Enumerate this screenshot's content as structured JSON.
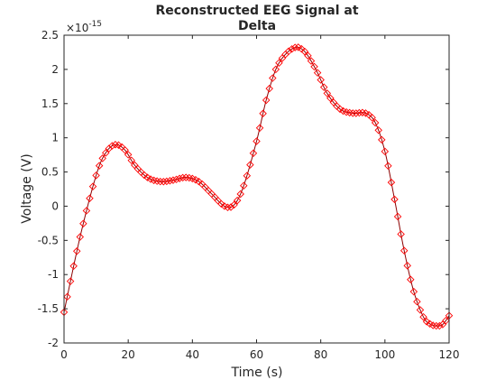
{
  "chart_data": {
    "type": "line",
    "title_lines": [
      "Reconstructed EEG Signal at",
      "Delta"
    ],
    "xlabel": "Time (s)",
    "ylabel": "Voltage (V)",
    "exponent_label": "×10",
    "exponent_power": "-15",
    "xlim": [
      0,
      120
    ],
    "ylim": [
      -2,
      2.5
    ],
    "x_ticks": [
      0,
      20,
      40,
      60,
      80,
      100,
      120
    ],
    "x_tick_labels": [
      "0",
      "20",
      "40",
      "60",
      "80",
      "100",
      "120"
    ],
    "y_ticks": [
      -2,
      -1.5,
      -1,
      -0.5,
      0,
      0.5,
      1,
      1.5,
      2,
      2.5
    ],
    "y_tick_labels": [
      "-2",
      "-1.5",
      "-1",
      "-0.5",
      "0",
      "0.5",
      "1",
      "1.5",
      "2",
      "2.5"
    ],
    "grid": false,
    "box": true,
    "series": [
      {
        "line_color": "#8b0000",
        "marker": "diamond",
        "marker_color": "#ff0000",
        "x": [
          0,
          5,
          10,
          13,
          16,
          19,
          22,
          26,
          30,
          34,
          38,
          42,
          46,
          50,
          53,
          56,
          60,
          63,
          66,
          69,
          72,
          74,
          76,
          79,
          82,
          86,
          90,
          94,
          97,
          100,
          103,
          106,
          109,
          112,
          114,
          116,
          118,
          120
        ],
        "y": [
          -1.55,
          -0.45,
          0.45,
          0.78,
          0.9,
          0.82,
          0.6,
          0.42,
          0.36,
          0.38,
          0.42,
          0.36,
          0.18,
          0.0,
          0.02,
          0.3,
          0.95,
          1.55,
          2.0,
          2.22,
          2.32,
          2.3,
          2.2,
          1.95,
          1.65,
          1.42,
          1.36,
          1.36,
          1.22,
          0.8,
          0.1,
          -0.65,
          -1.25,
          -1.62,
          -1.72,
          -1.75,
          -1.73,
          -1.6
        ]
      }
    ]
  }
}
